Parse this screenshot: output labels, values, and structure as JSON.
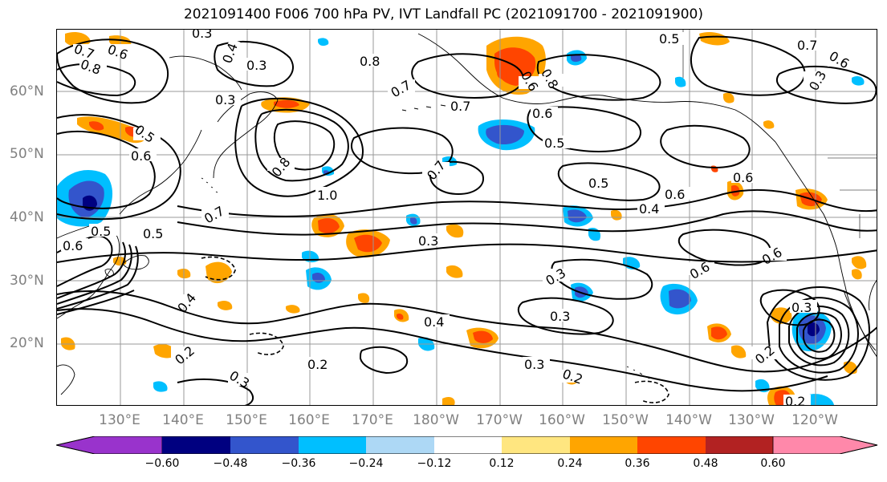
{
  "title": "2021091400 F006 700 hPa PV, IVT Landfall PC (2021091700 - 2021091900)",
  "lat_labels": [
    "60°N",
    "50°N",
    "40°N",
    "30°N",
    "20°N"
  ],
  "lon_labels": [
    "130°E",
    "140°E",
    "150°E",
    "160°E",
    "170°E",
    "180°W",
    "170°W",
    "160°W",
    "150°W",
    "140°W",
    "130°W",
    "120°W"
  ],
  "contour_labels": [
    "0.3",
    "0.4",
    "0.3",
    "0.5",
    "0.7",
    "0.7",
    "0.6",
    "0.8",
    "0.8",
    "0.3",
    "0.8",
    "0.6",
    "0.5",
    "0.8",
    "1.0",
    "0.7",
    "0.7",
    "0.5",
    "0.6",
    "0.5",
    "0.4",
    "0.6",
    "0.3",
    "0.5",
    "0.6",
    "0.6",
    "0.3",
    "0.6",
    "0.3",
    "0.4",
    "0.6",
    "0.2",
    "0.3",
    "0.2",
    "0.4",
    "0.2",
    "0.3",
    "0.2",
    "0.3",
    "0.2",
    "0.7",
    "0.6",
    "0.3",
    "0.5",
    "0.6",
    "0.7"
  ],
  "colorbar": {
    "colors": [
      "#9933cc",
      "#000080",
      "#3355cc",
      "#00bfff",
      "#add8f5",
      "#ffffff",
      "#ffe680",
      "#ffa500",
      "#ff4500",
      "#b22222",
      "#ff88aa"
    ],
    "tick_labels": [
      "−0.60",
      "−0.48",
      "−0.36",
      "−0.24",
      "−0.12",
      "0.12",
      "0.24",
      "0.36",
      "0.48",
      "0.60"
    ]
  },
  "colors": {
    "grid": "#999999",
    "contour": "#000000",
    "coast": "#000000",
    "axis_text": "#808080"
  }
}
